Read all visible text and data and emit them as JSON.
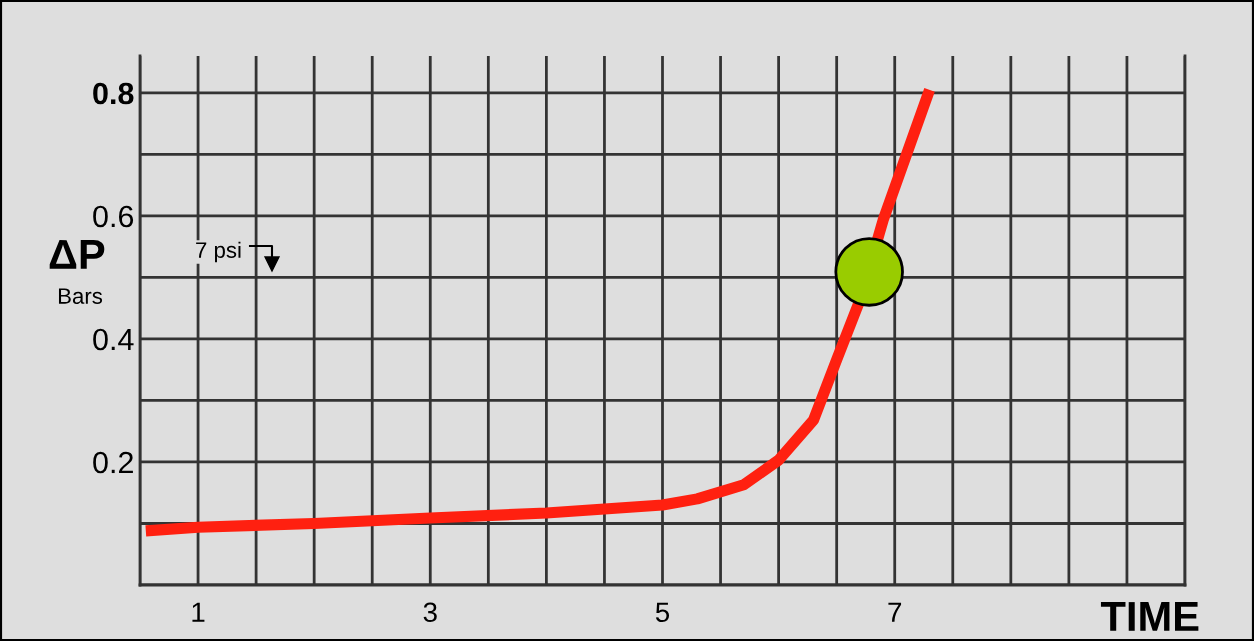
{
  "chart_data": {
    "type": "line",
    "ylabel": "ΔP",
    "xlabel": "TIME",
    "annotations": [
      "Bars",
      "7 psi"
    ],
    "xlim": [
      0.5,
      9.5
    ],
    "ylim": [
      0,
      0.86
    ],
    "xticks": [
      {
        "value": 0.5,
        "label": null
      },
      1,
      {
        "value": 1.5,
        "label": null
      },
      {
        "value": 2,
        "label": null
      },
      {
        "value": 2.5,
        "label": null
      },
      3,
      {
        "value": 3.5,
        "label": null
      },
      {
        "value": 4,
        "label": null
      },
      {
        "value": 4.5,
        "label": null
      },
      5,
      {
        "value": 5.5,
        "label": null
      },
      {
        "value": 6,
        "label": null
      },
      {
        "value": 6.5,
        "label": null
      },
      7,
      {
        "value": 7.5,
        "label": null
      },
      {
        "value": 8,
        "label": null
      },
      {
        "value": 8.5,
        "label": null
      },
      {
        "value": 9,
        "label": null
      },
      {
        "value": 9.5,
        "label": null
      }
    ],
    "yticks": [
      {
        "value": 0,
        "label": null
      },
      {
        "value": 0.1,
        "label": null
      },
      0.2,
      {
        "value": 0.3,
        "label": null
      },
      0.4,
      {
        "value": 0.5,
        "label": null
      },
      0.6,
      {
        "value": 0.7,
        "label": null
      },
      0.8
    ],
    "grid": true,
    "line_style": "solid",
    "series": [
      {
        "color": "#ff2010",
        "marker": "none",
        "x": [
          0.55,
          1,
          2,
          3,
          4,
          5,
          5.3,
          5.7,
          6,
          6.3,
          6.5,
          6.7,
          6.9,
          7.3
        ],
        "values": [
          0.088,
          0.094,
          0.1,
          0.109,
          0.117,
          0.13,
          0.14,
          0.163,
          0.203,
          0.268,
          0.366,
          0.463,
          0.593,
          0.805
        ]
      },
      {
        "type": "scatter",
        "marker": "circle",
        "color": "#99cc00",
        "x": [
          6.78
        ],
        "values": [
          0.509
        ]
      }
    ]
  }
}
